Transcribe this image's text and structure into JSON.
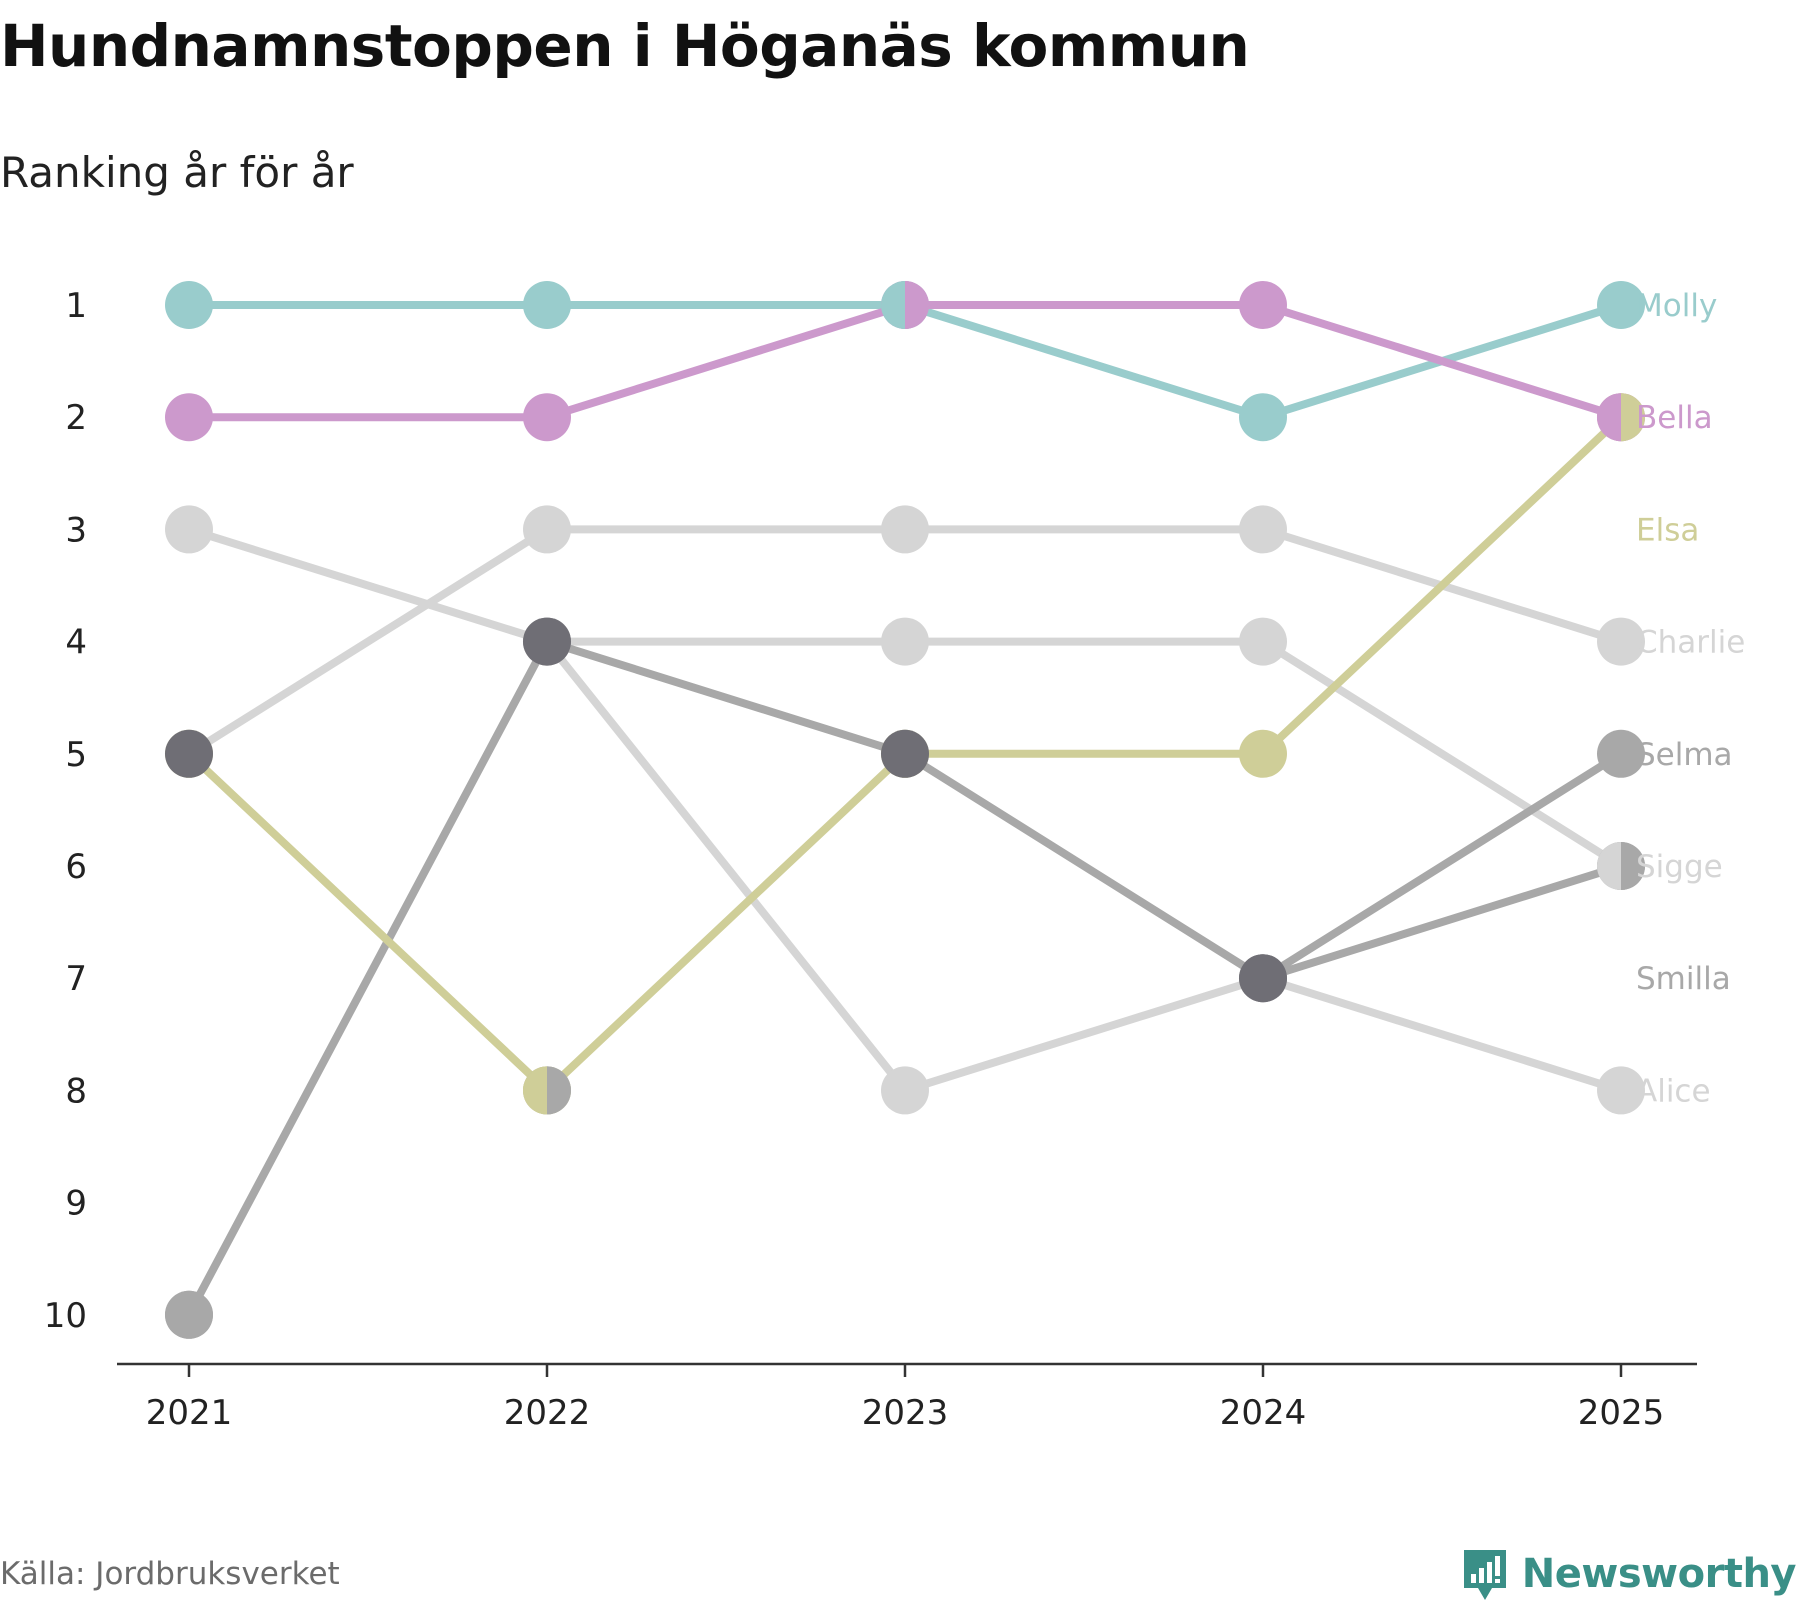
{
  "title": "Hundnamnstoppen i Höganäs kommun",
  "subtitle": "Ranking år för år",
  "source": "Källa: Jordbruksverket",
  "brand": "Newsworthy",
  "colors": {
    "brand": "#3a8f87"
  },
  "chart_data": {
    "type": "line",
    "title": "Hundnamnstoppen i Höganäs kommun",
    "subtitle": "Ranking år för år",
    "x": [
      "2021",
      "2022",
      "2023",
      "2024",
      "2025"
    ],
    "y_ticks": [
      "1",
      "2",
      "3",
      "4",
      "5",
      "6",
      "7",
      "8",
      "9",
      "10"
    ],
    "ylim": [
      1,
      10
    ],
    "y_inverted": true,
    "xlabel": "",
    "ylabel": "",
    "series": [
      {
        "name": "Charlie",
        "color": "#d5d5d5",
        "ranks": [
          5,
          3,
          3,
          3,
          4
        ]
      },
      {
        "name": "Sigge",
        "color": "#d5d5d5",
        "ranks": [
          3,
          4,
          4,
          4,
          6
        ]
      },
      {
        "name": "Alice",
        "color": "#d5d5d5",
        "ranks": [
          null,
          4,
          8,
          7,
          8
        ]
      },
      {
        "name": "Selma",
        "color": "#a8a8a8",
        "ranks": [
          10,
          4,
          5,
          7,
          5
        ]
      },
      {
        "name": "Smilla",
        "color": "#a8a8a8",
        "ranks": [
          null,
          8,
          null,
          7,
          6
        ]
      },
      {
        "name": "Elsa",
        "color": "#cfce98",
        "ranks": [
          5,
          8,
          5,
          5,
          2
        ]
      },
      {
        "name": "Molly",
        "color": "#99cccc",
        "ranks": [
          1,
          1,
          1,
          2,
          1
        ]
      },
      {
        "name": "Bella",
        "color": "#cc99cc",
        "ranks": [
          2,
          2,
          1,
          1,
          2
        ]
      }
    ],
    "overlap_points": [
      {
        "year": "2021",
        "rank": 5,
        "color": "#6f6e75"
      },
      {
        "year": "2022",
        "rank": 4,
        "color": "#6f6e75"
      },
      {
        "year": "2023",
        "rank": 5,
        "color": "#6f6e75"
      },
      {
        "year": "2024",
        "rank": 7,
        "color": "#6f6e75"
      },
      {
        "year": "2021",
        "rank": 10,
        "color": "#a8a8a8"
      }
    ],
    "split_points": [
      {
        "year": "2023",
        "rank": 1,
        "left": "#99cccc",
        "right": "#cc99cc"
      },
      {
        "year": "2025",
        "rank": 2,
        "left": "#cc99cc",
        "right": "#cfce98"
      },
      {
        "year": "2022",
        "rank": 8,
        "left": "#cfce98",
        "right": "#a8a8a8"
      },
      {
        "year": "2025",
        "rank": 6,
        "left": "#d5d5d5",
        "right": "#a8a8a8"
      }
    ],
    "end_labels": [
      {
        "name": "Molly",
        "rank": 1,
        "color": "#99cccc"
      },
      {
        "name": "Bella",
        "rank": 2,
        "color": "#cc99cc"
      },
      {
        "name": "Elsa",
        "rank": 3,
        "color": "#cfce98"
      },
      {
        "name": "Charlie",
        "rank": 4,
        "color": "#d5d5d5"
      },
      {
        "name": "Selma",
        "rank": 5,
        "color": "#a8a8a8"
      },
      {
        "name": "Sigge",
        "rank": 6,
        "color": "#d5d5d5"
      },
      {
        "name": "Smilla",
        "rank": 7,
        "color": "#a8a8a8"
      },
      {
        "name": "Alice",
        "rank": 8,
        "color": "#d5d5d5"
      }
    ]
  }
}
